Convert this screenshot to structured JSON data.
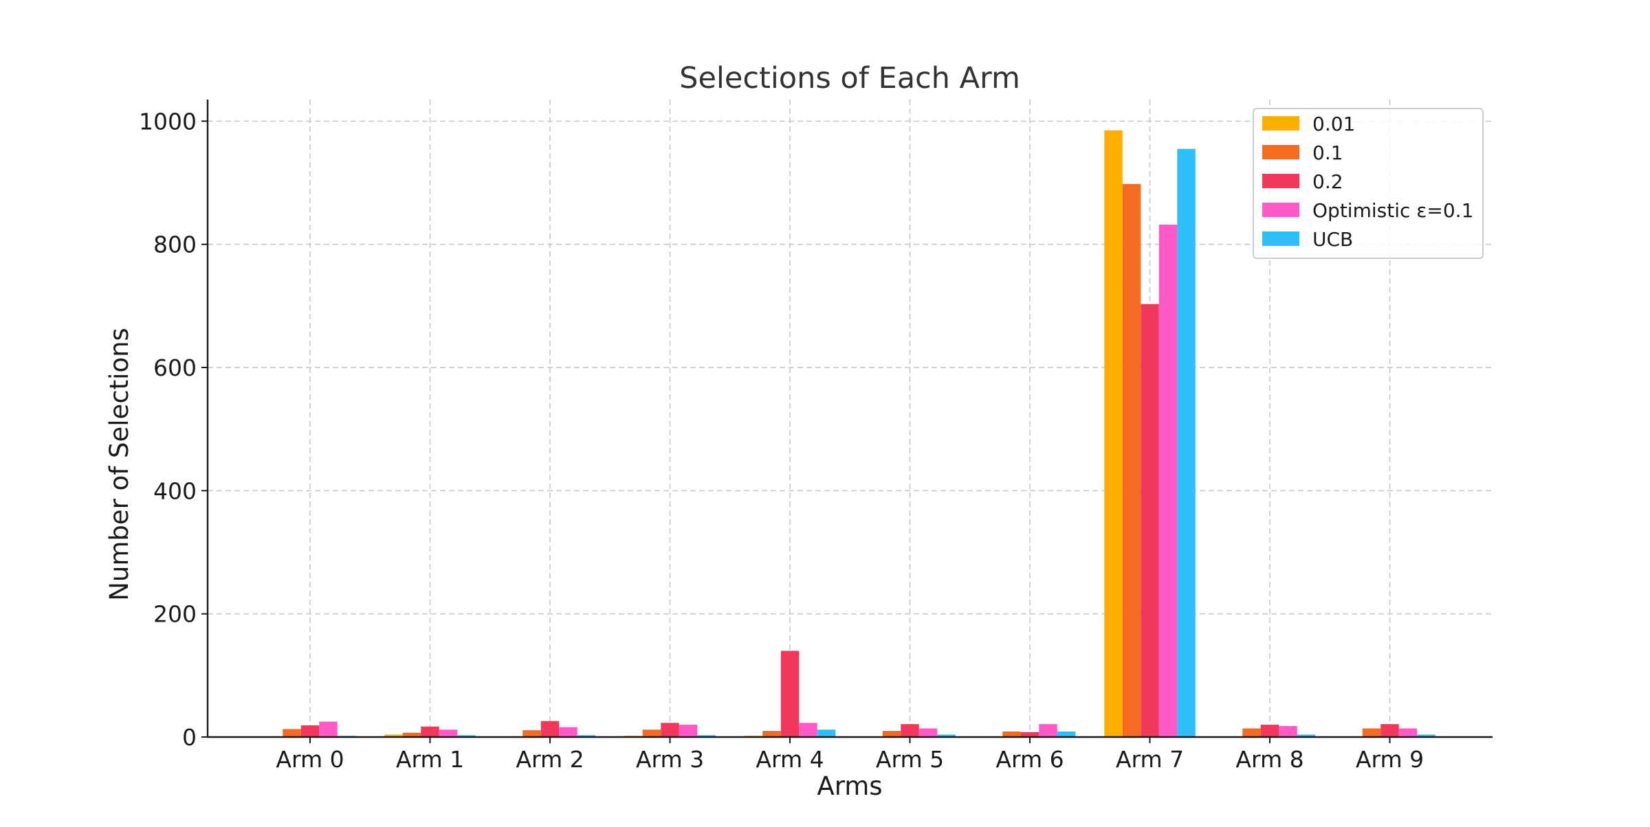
{
  "chart_data": {
    "type": "bar",
    "title": "Selections of Each Arm",
    "xlabel": "Arms",
    "ylabel": "Number of Selections",
    "categories": [
      "Arm 0",
      "Arm 1",
      "Arm 2",
      "Arm 3",
      "Arm 4",
      "Arm 5",
      "Arm 6",
      "Arm 7",
      "Arm 8",
      "Arm 9"
    ],
    "ylim": [
      0,
      1035
    ],
    "yticks": [
      0,
      200,
      400,
      600,
      800,
      1000
    ],
    "grid": true,
    "legend_position": "top-right",
    "series": [
      {
        "name": "0.01",
        "color": "#FFAE00",
        "values": [
          1,
          4,
          1,
          2,
          2,
          1,
          1,
          985,
          1,
          1
        ]
      },
      {
        "name": "0.1",
        "color": "#F56B22",
        "values": [
          13,
          7,
          11,
          12,
          10,
          10,
          9,
          898,
          14,
          14
        ]
      },
      {
        "name": "0.2",
        "color": "#F2385A",
        "values": [
          19,
          17,
          26,
          23,
          140,
          21,
          8,
          703,
          20,
          21
        ]
      },
      {
        "name": "Optimistic ε=0.1",
        "color": "#FF5AC8",
        "values": [
          25,
          12,
          16,
          20,
          23,
          14,
          21,
          832,
          18,
          14
        ]
      },
      {
        "name": "UCB",
        "color": "#2EBEFA",
        "values": [
          2,
          3,
          3,
          3,
          12,
          4,
          9,
          955,
          4,
          4
        ]
      }
    ]
  }
}
